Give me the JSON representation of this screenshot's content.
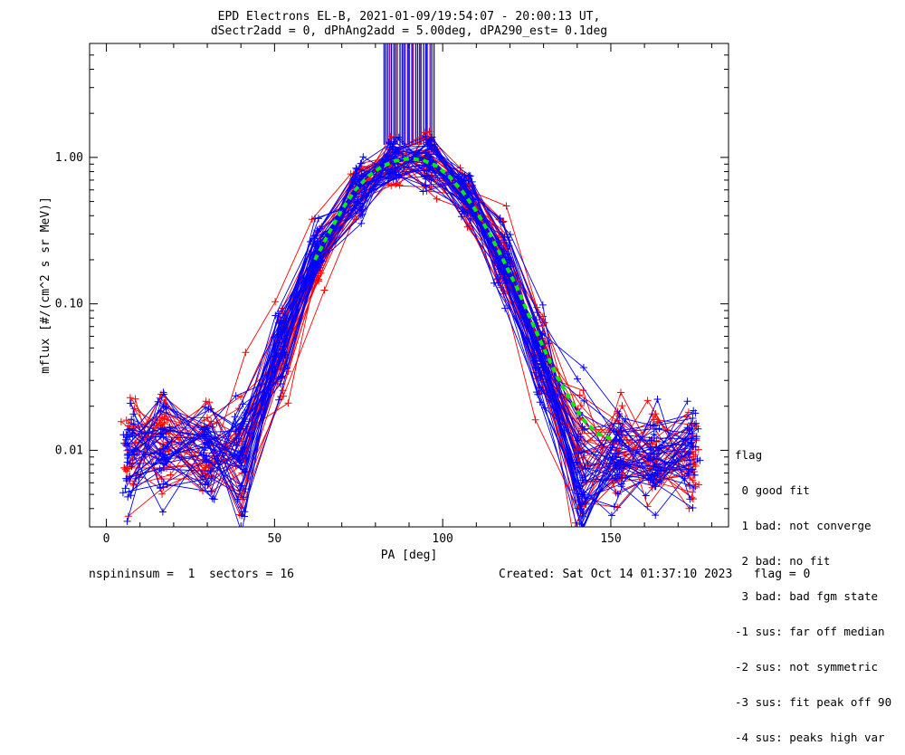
{
  "chart_data": {
    "type": "line",
    "title": "EPD Electrons EL-B, 2021-01-09/19:54:07 - 20:00:13 UT,",
    "subtitle": "dSectr2add = 0, dPhAng2add = 5.00deg, dPA290_est=   0.1deg",
    "xlabel": "PA [deg]",
    "ylabel": "mflux [#/(cm^2 s sr MeV)]",
    "xlim": [
      -5,
      185
    ],
    "ylim": [
      0.003,
      6.0
    ],
    "yscale": "log",
    "x_ticks": [
      0,
      50,
      100,
      150
    ],
    "x_tick_labels": [
      "0",
      "50",
      "100",
      "150"
    ],
    "y_ticks": [
      0.01,
      0.1,
      1.0
    ],
    "y_tick_labels": [
      "0.01",
      "0.10",
      "1.00"
    ],
    "colors": {
      "series_a": "#ff0000",
      "series_b": "#0000ff",
      "fit": "#00ee00",
      "peak_markers_a": "#0000cc",
      "peak_markers_b": "#990066"
    },
    "fit_curve": {
      "x": [
        62,
        66,
        70,
        74,
        78,
        82,
        86,
        90,
        94,
        98,
        102,
        106,
        110,
        114,
        118,
        122,
        126,
        130,
        134,
        138,
        142,
        146,
        150
      ],
      "y": [
        0.2,
        0.3,
        0.44,
        0.6,
        0.75,
        0.87,
        0.95,
        0.98,
        0.96,
        0.88,
        0.74,
        0.58,
        0.43,
        0.3,
        0.2,
        0.13,
        0.08,
        0.05,
        0.032,
        0.022,
        0.016,
        0.013,
        0.012
      ]
    },
    "grid": false,
    "legend": "none"
  },
  "flag_legend": {
    "title": "flag",
    "items": [
      " 0 good fit",
      " 1 bad: not converge",
      " 2 bad: no fit",
      " 3 bad: bad fgm state",
      "-1 sus: far off median",
      "-2 sus: not symmetric",
      "-3 sus: fit peak off 90",
      "-4 sus: peaks high var"
    ]
  },
  "footer": {
    "left": "nspininsum =  1  sectors = 16",
    "right": "Created: Sat Oct 14 01:37:10 2023   flag = 0"
  }
}
